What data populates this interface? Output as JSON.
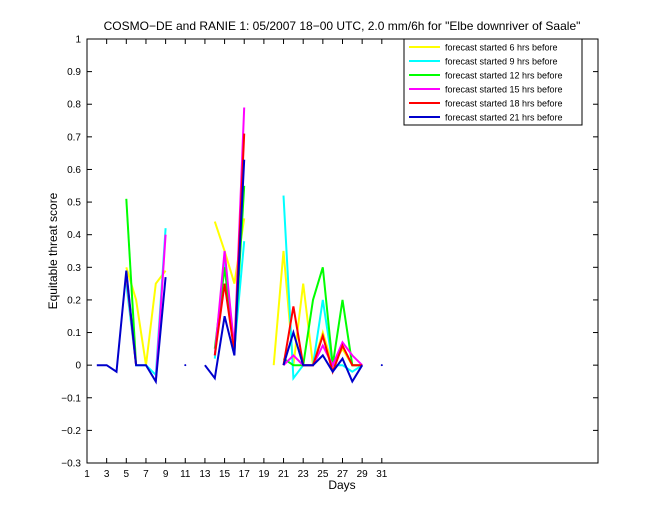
{
  "chart_data": {
    "type": "line",
    "title": "COSMO−DE and RANIE 1: 05/2007 18−00 UTC, 2.0 mm/6h for \"Elbe downriver of Saale\"",
    "xlabel": "Days",
    "ylabel": "Equitable threat score",
    "xlim": [
      1,
      53
    ],
    "ylim": [
      -0.3,
      1
    ],
    "x_ticks": [
      1,
      3,
      5,
      7,
      9,
      11,
      13,
      15,
      17,
      19,
      21,
      23,
      25,
      27,
      29,
      31
    ],
    "y_ticks": [
      -0.3,
      -0.2,
      -0.1,
      0,
      0.1,
      0.2,
      0.3,
      0.4,
      0.5,
      0.6,
      0.7,
      0.8,
      0.9,
      1
    ],
    "y_tick_labels": [
      "−0.3",
      "−0.2",
      "−0.1",
      "0",
      "0.1",
      "0.2",
      "0.3",
      "0.4",
      "0.5",
      "0.6",
      "0.7",
      "0.8",
      "0.9",
      "1"
    ],
    "grid": false,
    "legend_position": "top-right",
    "x": [
      2,
      3,
      4,
      5,
      6,
      7,
      8,
      9,
      10,
      11,
      12,
      13,
      14,
      15,
      16,
      17,
      18,
      19,
      20,
      21,
      22,
      23,
      24,
      25,
      26,
      27,
      28,
      29,
      30,
      31
    ],
    "series": [
      {
        "name": "forecast started 6 hrs before",
        "color": "#ffff00",
        "values": [
          null,
          null,
          null,
          0.3,
          0.2,
          0.0,
          0.25,
          0.29,
          null,
          null,
          null,
          null,
          0.44,
          0.35,
          0.25,
          0.45,
          null,
          null,
          0.0,
          0.35,
          0.0,
          0.25,
          0.0,
          0.1,
          0.0,
          0.05,
          0.0,
          0.0,
          null,
          null
        ]
      },
      {
        "name": "forecast started 9 hrs before",
        "color": "#00ffff",
        "values": [
          null,
          null,
          null,
          0.25,
          0.0,
          0.0,
          -0.03,
          0.42,
          null,
          null,
          null,
          null,
          0.02,
          0.33,
          0.05,
          0.38,
          null,
          null,
          null,
          0.52,
          -0.04,
          0.0,
          0.0,
          0.2,
          0.0,
          0.0,
          -0.02,
          0.0,
          null,
          null
        ]
      },
      {
        "name": "forecast started 12 hrs before",
        "color": "#00ff00",
        "values": [
          null,
          null,
          null,
          0.51,
          0.0,
          null,
          null,
          null,
          null,
          null,
          null,
          null,
          0.05,
          0.3,
          0.04,
          0.55,
          null,
          null,
          null,
          0.02,
          0.0,
          0.0,
          0.2,
          0.3,
          0.0,
          0.2,
          0.0,
          0.0,
          null,
          null
        ]
      },
      {
        "name": "forecast started 15 hrs before",
        "color": "#ff00ff",
        "values": [
          null,
          null,
          null,
          0.28,
          0.0,
          null,
          -0.05,
          0.4,
          null,
          null,
          null,
          null,
          0.03,
          0.35,
          0.05,
          0.79,
          null,
          null,
          null,
          0.0,
          0.03,
          0.0,
          0.0,
          0.06,
          0.0,
          0.07,
          0.03,
          0.0,
          null,
          null
        ]
      },
      {
        "name": "forecast started 18 hrs before",
        "color": "#ff0000",
        "values": [
          null,
          null,
          null,
          0.28,
          0.0,
          null,
          null,
          null,
          null,
          null,
          null,
          null,
          0.03,
          0.25,
          0.04,
          0.71,
          null,
          null,
          null,
          0.0,
          0.18,
          0.0,
          0.0,
          0.09,
          -0.02,
          0.06,
          0.0,
          0.0,
          null,
          null
        ]
      },
      {
        "name": "forecast started 21 hrs before",
        "color": "#0000cc",
        "values": [
          0.0,
          0.0,
          -0.02,
          0.29,
          0.0,
          0.0,
          -0.05,
          0.27,
          null,
          0.0,
          null,
          0.0,
          -0.04,
          0.15,
          0.03,
          0.63,
          null,
          null,
          null,
          0.0,
          0.1,
          0.0,
          0.0,
          0.03,
          -0.02,
          0.02,
          -0.05,
          0.0,
          null,
          0.0
        ]
      }
    ]
  }
}
